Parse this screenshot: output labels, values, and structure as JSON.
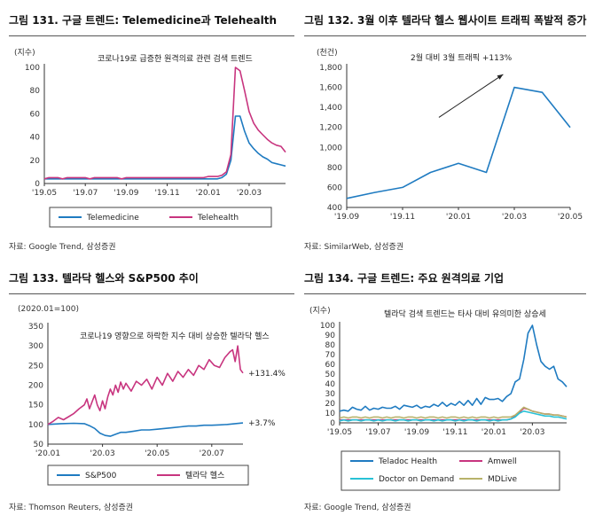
{
  "colors": {
    "blue": "#1f7bc1",
    "pink": "#c8357f",
    "cyan": "#29c2d6",
    "khaki": "#b8b26a",
    "axis": "#333333"
  },
  "panels": {
    "p1": {
      "title": "그림 131. 구글 트렌드: Telemedicine과 Telehealth",
      "source": "자료: Google Trend, 삼성증권"
    },
    "p2": {
      "title": "그림 132. 3월 이후 텔라닥 헬스 웹사이트 트래픽 폭발적 증가",
      "source": "자료: SimilarWeb, 삼성증권"
    },
    "p3": {
      "title": "그림 133. 텔라닥 헬스와 S&P500 추이",
      "source": "자료: Thomson Reuters, 삼성증권"
    },
    "p4": {
      "title": "그림 134. 구글 트렌드: 주요 원격의료 기업",
      "source": "자료: Google Trend, 삼성증권"
    }
  },
  "chart_data": [
    {
      "id": "c1",
      "type": "line",
      "unit": "(지수)",
      "annotation": "코로나19로 급증한 원격의료 관련 검색 트렌드",
      "ylim": [
        0,
        100
      ],
      "yticks": [
        0,
        20,
        40,
        60,
        80,
        100
      ],
      "xlim": [
        0,
        53
      ],
      "xticks": [
        {
          "x": 0,
          "label": "'19.05"
        },
        {
          "x": 9,
          "label": "'19.07"
        },
        {
          "x": 18,
          "label": "'19.09"
        },
        {
          "x": 27,
          "label": "'19.11"
        },
        {
          "x": 36,
          "label": "'20.01"
        },
        {
          "x": 45,
          "label": "'20.03"
        }
      ],
      "legend": "bottom",
      "series": [
        {
          "name": "Telemedicine",
          "color": "blue",
          "values": [
            4,
            4,
            4,
            4,
            4,
            4,
            4,
            4,
            4,
            4,
            4,
            4,
            4,
            4,
            4,
            4,
            4,
            4,
            4,
            4,
            4,
            4,
            4,
            4,
            4,
            4,
            4,
            4,
            4,
            4,
            4,
            4,
            4,
            4,
            4,
            4,
            4,
            4,
            4,
            5,
            8,
            20,
            58,
            58,
            45,
            35,
            30,
            26,
            23,
            21,
            18,
            17,
            16,
            15
          ]
        },
        {
          "name": "Telehealth",
          "color": "pink",
          "values": [
            4,
            5,
            5,
            5,
            4,
            5,
            5,
            5,
            5,
            5,
            4,
            5,
            5,
            5,
            5,
            5,
            5,
            4,
            5,
            5,
            5,
            5,
            5,
            5,
            5,
            5,
            5,
            5,
            5,
            5,
            5,
            5,
            5,
            5,
            5,
            5,
            6,
            6,
            6,
            7,
            10,
            25,
            100,
            97,
            80,
            62,
            52,
            46,
            42,
            38,
            35,
            33,
            32,
            27
          ]
        }
      ]
    },
    {
      "id": "c2",
      "type": "line",
      "unit": "(천건)",
      "annotation": "2월 대비 3월 트래픽 +113%",
      "ylim": [
        400,
        1800
      ],
      "yticks": [
        400,
        600,
        800,
        1000,
        1200,
        1400,
        1600,
        1800
      ],
      "xlim": [
        0,
        8
      ],
      "xticks": [
        {
          "x": 0,
          "label": "'19.09"
        },
        {
          "x": 2,
          "label": "'19.11"
        },
        {
          "x": 4,
          "label": "'20.01"
        },
        {
          "x": 6,
          "label": "'20.03"
        },
        {
          "x": 8,
          "label": "'20.05"
        }
      ],
      "series": [
        {
          "name": "",
          "color": "blue",
          "x": [
            0,
            1,
            2,
            3,
            4,
            5,
            6,
            7,
            8
          ],
          "values": [
            490,
            550,
            600,
            750,
            840,
            750,
            1600,
            1550,
            1200
          ]
        }
      ]
    },
    {
      "id": "c3",
      "type": "line",
      "unit": "(2020.01=100)",
      "annotation": "코로나19 영향으로 하락한 지수 대비 상승한 텔라닥 헬스",
      "ylim": [
        50,
        350
      ],
      "yticks": [
        50,
        100,
        150,
        200,
        250,
        300,
        350
      ],
      "xlim": [
        0,
        150
      ],
      "xticks": [
        {
          "x": 0,
          "label": "'20.01"
        },
        {
          "x": 42,
          "label": "'20.03"
        },
        {
          "x": 84,
          "label": "'20.05"
        },
        {
          "x": 126,
          "label": "'20.07"
        }
      ],
      "end_labels": [
        "+131.4%",
        "+3.7%"
      ],
      "legend": "bottom",
      "series": [
        {
          "name": "S&P500",
          "color": "blue",
          "x": [
            0,
            10,
            20,
            28,
            32,
            36,
            40,
            44,
            48,
            52,
            56,
            60,
            66,
            72,
            78,
            84,
            90,
            96,
            102,
            108,
            114,
            120,
            126,
            132,
            138,
            144,
            150
          ],
          "values": [
            100,
            102,
            103,
            102,
            97,
            90,
            78,
            72,
            70,
            75,
            80,
            80,
            83,
            86,
            86,
            88,
            90,
            92,
            94,
            96,
            96,
            98,
            98,
            99,
            100,
            102,
            104
          ]
        },
        {
          "name": "텔라닥 헬스",
          "color": "pink",
          "x": [
            0,
            4,
            8,
            12,
            16,
            20,
            24,
            28,
            30,
            32,
            34,
            36,
            38,
            40,
            42,
            44,
            46,
            48,
            50,
            52,
            54,
            56,
            58,
            60,
            64,
            68,
            72,
            76,
            80,
            84,
            88,
            92,
            96,
            100,
            104,
            108,
            112,
            116,
            120,
            124,
            128,
            132,
            136,
            140,
            142,
            144,
            146,
            148,
            150
          ],
          "values": [
            100,
            108,
            118,
            112,
            120,
            128,
            140,
            150,
            165,
            140,
            158,
            175,
            150,
            135,
            160,
            140,
            170,
            190,
            175,
            200,
            182,
            208,
            190,
            205,
            185,
            210,
            200,
            215,
            190,
            220,
            200,
            230,
            210,
            235,
            220,
            240,
            225,
            250,
            240,
            265,
            250,
            245,
            270,
            285,
            290,
            260,
            300,
            240,
            231
          ]
        }
      ]
    },
    {
      "id": "c4",
      "type": "line",
      "unit": "(지수)",
      "annotation": "텔라닥 검색 트렌드는 타사 대비 유의미한 상승세",
      "ylim": [
        0,
        100
      ],
      "yticks": [
        0,
        10,
        20,
        30,
        40,
        50,
        60,
        70,
        80,
        90,
        100
      ],
      "xlim": [
        0,
        53
      ],
      "xticks": [
        {
          "x": 0,
          "label": "'19.05"
        },
        {
          "x": 9,
          "label": "'19.07"
        },
        {
          "x": 18,
          "label": "'19.09"
        },
        {
          "x": 27,
          "label": "'19.11"
        },
        {
          "x": 36,
          "label": "'20.01"
        },
        {
          "x": 45,
          "label": "'20.03"
        }
      ],
      "legend": "bottom",
      "series": [
        {
          "name": "Teladoc Health",
          "color": "blue",
          "values": [
            12,
            13,
            12,
            16,
            14,
            13,
            17,
            13,
            15,
            14,
            16,
            15,
            15,
            17,
            14,
            18,
            17,
            16,
            18,
            15,
            17,
            16,
            19,
            17,
            21,
            17,
            20,
            18,
            22,
            18,
            23,
            18,
            25,
            19,
            26,
            24,
            24,
            25,
            22,
            27,
            30,
            42,
            45,
            65,
            92,
            100,
            80,
            63,
            58,
            55,
            58,
            45,
            42,
            37
          ]
        },
        {
          "name": "Amwell",
          "color": "pink",
          "values": [
            3,
            3,
            3,
            3,
            3,
            3,
            3,
            3,
            3,
            3,
            3,
            3,
            3,
            3,
            3,
            3,
            3,
            3,
            3,
            3,
            3,
            3,
            3,
            3,
            3,
            3,
            3,
            3,
            3,
            3,
            3,
            3,
            3,
            3,
            3,
            3,
            3,
            3,
            3,
            3,
            4,
            7,
            11,
            15,
            14,
            12,
            11,
            10,
            9,
            9,
            8,
            8,
            7,
            6
          ]
        },
        {
          "name": "Doctor on Demand",
          "color": "cyan",
          "values": [
            2,
            3,
            2,
            3,
            3,
            2,
            3,
            3,
            2,
            3,
            2,
            3,
            3,
            2,
            3,
            3,
            2,
            3,
            3,
            2,
            3,
            3,
            2,
            3,
            2,
            3,
            3,
            2,
            3,
            2,
            3,
            3,
            2,
            3,
            3,
            2,
            3,
            2,
            3,
            3,
            4,
            6,
            10,
            12,
            11,
            10,
            9,
            8,
            7,
            7,
            6,
            6,
            5,
            4
          ]
        },
        {
          "name": "MDLive",
          "color": "khaki",
          "values": [
            5,
            6,
            5,
            6,
            6,
            5,
            6,
            5,
            6,
            6,
            5,
            6,
            5,
            6,
            6,
            5,
            6,
            6,
            5,
            6,
            5,
            6,
            6,
            5,
            6,
            5,
            6,
            6,
            5,
            6,
            5,
            6,
            5,
            6,
            6,
            5,
            6,
            5,
            6,
            6,
            6,
            8,
            12,
            16,
            14,
            12,
            11,
            10,
            9,
            9,
            8,
            8,
            7,
            6
          ]
        }
      ]
    }
  ]
}
